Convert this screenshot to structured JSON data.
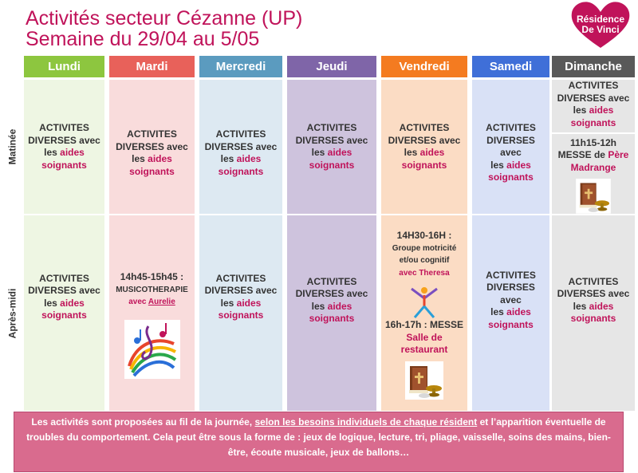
{
  "header": {
    "title_line1": "Activités secteur Cézanne (UP)",
    "title_line2": "Semaine du 29/04 au 5/05"
  },
  "logo": {
    "line1": "Résidence",
    "line2": "De Vinci",
    "color": "#c0135a"
  },
  "rows": {
    "morning": "Matinée",
    "afternoon": "Après-midi"
  },
  "days": [
    {
      "label": "Lundi",
      "head_color": "#8dc63f",
      "body_color": "#eef6e3"
    },
    {
      "label": "Mardi",
      "head_color": "#e8615a",
      "body_color": "#f9dcdc"
    },
    {
      "label": "Mercredi",
      "head_color": "#5b9bbf",
      "body_color": "#dde9f2"
    },
    {
      "label": "Jeudi",
      "head_color": "#7f65a8",
      "body_color": "#cec3dd"
    },
    {
      "label": "Vendredi",
      "head_color": "#f47b20",
      "body_color": "#fbdcc4"
    },
    {
      "label": "Samedi",
      "head_color": "#3f6fd8",
      "body_color": "#d9e1f6"
    },
    {
      "label": "Dimanche",
      "head_color": "#595959",
      "body_color": "#e6e6e6"
    }
  ],
  "activity": {
    "l1": "ACTIVITES",
    "l2": "DIVERSES avec",
    "les": "les",
    "aides": "aides",
    "soignants": "soignants"
  },
  "mardi_pm": {
    "time": "14h45-15h45 :",
    "title": "MUSICOTHERAPIE",
    "avec": "avec",
    "name": "Aurelie"
  },
  "vendredi_pm": {
    "time": "14H30-16H :",
    "title1": "Groupe motricité",
    "title2": "et/ou cognitif",
    "avec": "avec Theresa",
    "messe_time": "16h-17h : MESSE",
    "place1": "Salle de",
    "place2": "restaurant"
  },
  "dimanche_am": {
    "time": "11h15-12h",
    "messe": "MESSE de",
    "pere": "Père",
    "name": "Madrange"
  },
  "footer": {
    "text1": "Les activités sont proposées au fil de la journée, ",
    "text_u": "selon les besoins individuels de chaque résident",
    "text2": " et l’apparition éventuelle de troubles du comportement. Cela peut être sous la forme de : jeux de logique, lecture, tri, pliage, vaisselle, soins des mains, bien-être, écoute musicale, jeux de ballons…"
  },
  "icons": [
    "bible-icon",
    "music-notes-icon",
    "exercise-figure-icon"
  ]
}
